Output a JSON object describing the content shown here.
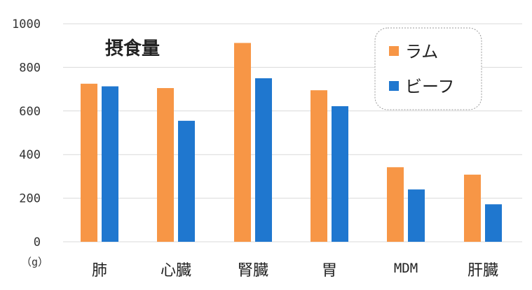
{
  "chart_data": {
    "type": "bar",
    "title": "摂食量",
    "ylabel": "（g）",
    "ylim": [
      0,
      1000
    ],
    "yticks": [
      0,
      200,
      400,
      600,
      800,
      1000
    ],
    "categories": [
      "肺",
      "心臓",
      "腎臓",
      "胃",
      "MDM",
      "肝臓"
    ],
    "series": [
      {
        "name": "ラム",
        "color": "#F79646",
        "values": [
          725,
          705,
          912,
          695,
          342,
          308
        ]
      },
      {
        "name": "ビーフ",
        "color": "#1F77CF",
        "values": [
          713,
          555,
          750,
          622,
          240,
          172
        ]
      }
    ],
    "grid": true,
    "legend_position": "top-right"
  }
}
